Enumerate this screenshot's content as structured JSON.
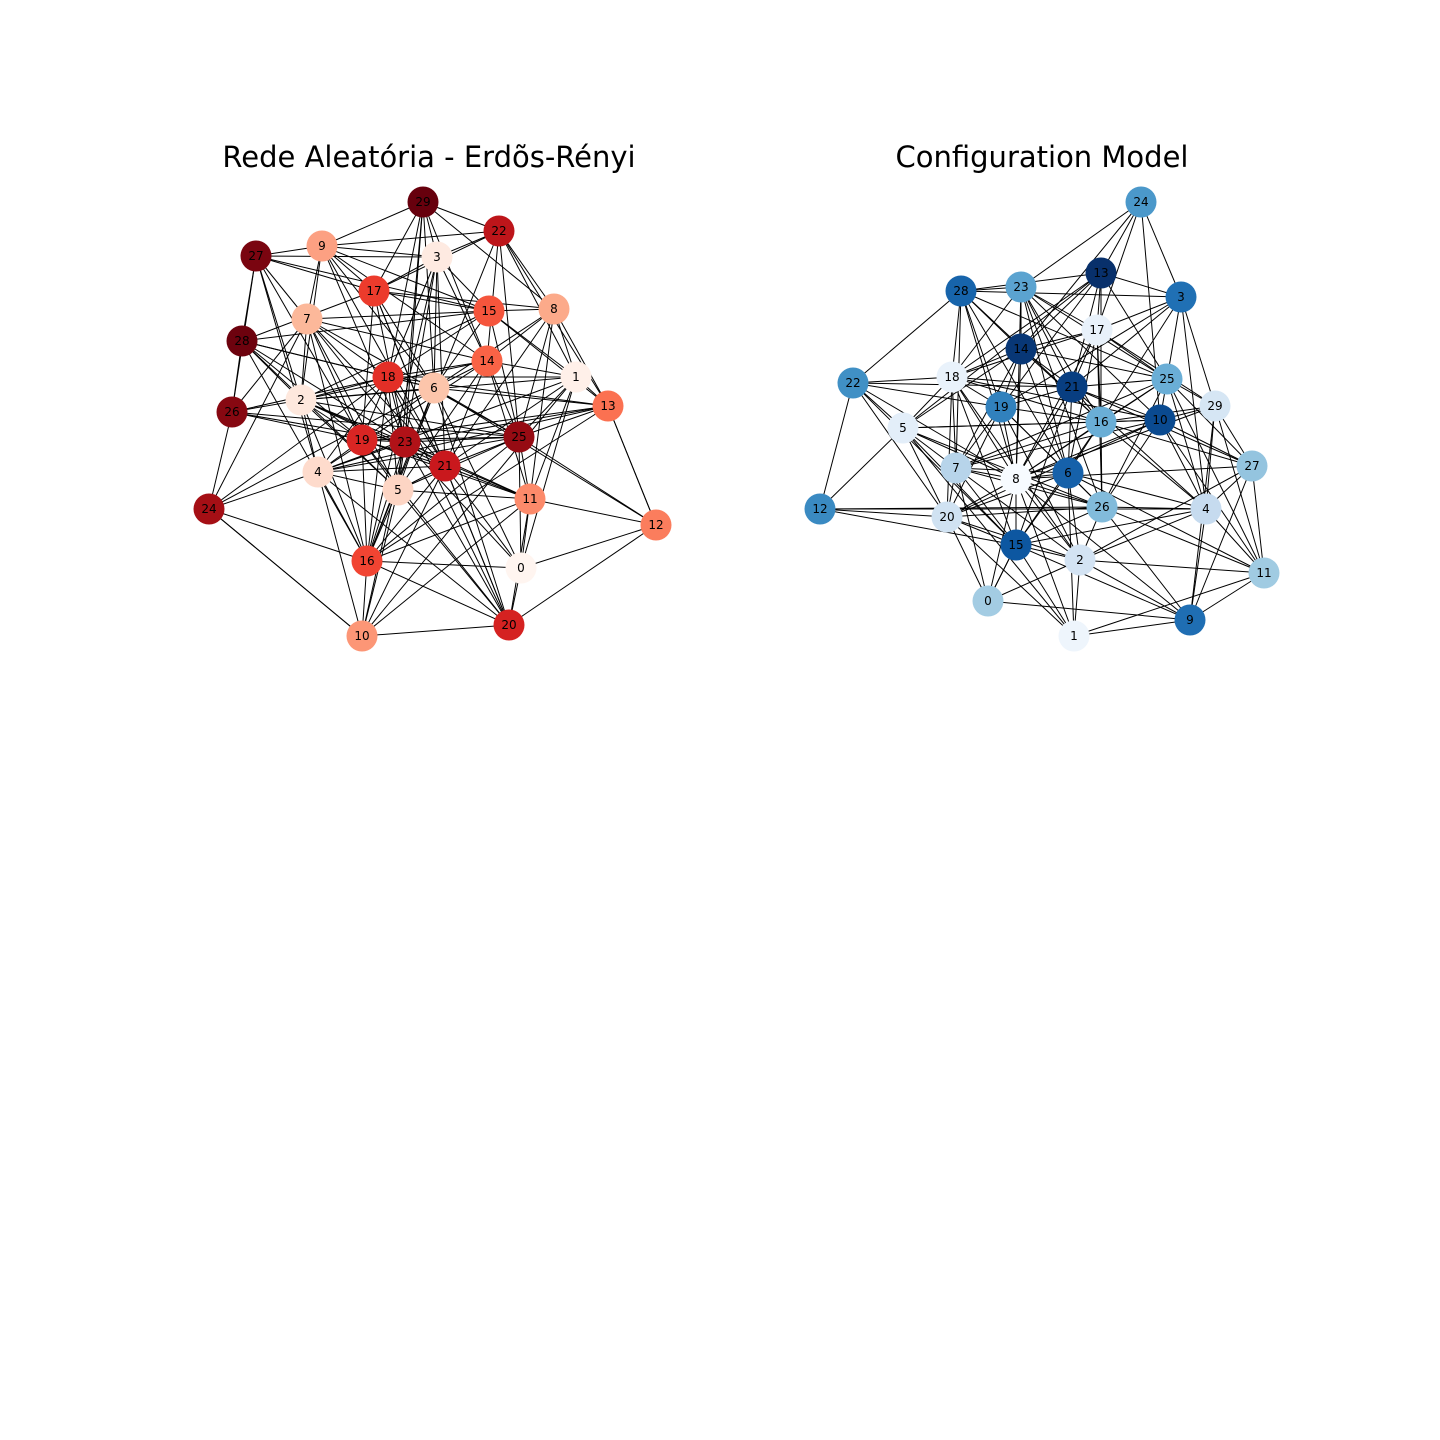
{
  "panels": [
    {
      "id": "er",
      "title": "Rede Aleatória - Erdõs-Rényi",
      "nodes": [
        {
          "id": "0",
          "color": "#fff5f0"
        },
        {
          "id": "1",
          "color": "#fff0e9"
        },
        {
          "id": "2",
          "color": "#fee8dd"
        },
        {
          "id": "3",
          "color": "#feeae1"
        },
        {
          "id": "4",
          "color": "#fedbcc"
        },
        {
          "id": "5",
          "color": "#fdd5c4"
        },
        {
          "id": "6",
          "color": "#fcc5ab"
        },
        {
          "id": "7",
          "color": "#fcb89a"
        },
        {
          "id": "8",
          "color": "#fcaa8a"
        },
        {
          "id": "9",
          "color": "#fca082"
        },
        {
          "id": "10",
          "color": "#fc9676"
        },
        {
          "id": "11",
          "color": "#fc8a6a"
        },
        {
          "id": "12",
          "color": "#fb7d5d"
        },
        {
          "id": "13",
          "color": "#fb7151"
        },
        {
          "id": "14",
          "color": "#f96346"
        },
        {
          "id": "15",
          "color": "#f5553c"
        },
        {
          "id": "16",
          "color": "#f14432"
        },
        {
          "id": "17",
          "color": "#ec3b2c"
        },
        {
          "id": "18",
          "color": "#e32f27"
        },
        {
          "id": "19",
          "color": "#d92523"
        },
        {
          "id": "20",
          "color": "#d52221"
        },
        {
          "id": "21",
          "color": "#c9181d"
        },
        {
          "id": "22",
          "color": "#bd151a"
        },
        {
          "id": "23",
          "color": "#b11218"
        },
        {
          "id": "24",
          "color": "#a50f15"
        },
        {
          "id": "25",
          "color": "#960b13"
        },
        {
          "id": "26",
          "color": "#870811"
        },
        {
          "id": "27",
          "color": "#7a0510"
        },
        {
          "id": "28",
          "color": "#6d020e"
        },
        {
          "id": "29",
          "color": "#67000d"
        }
      ]
    },
    {
      "id": "cm",
      "title": "Configuration Model",
      "nodes": [
        {
          "id": "0",
          "color": "#a3cce3"
        },
        {
          "id": "1",
          "color": "#eef5fc"
        },
        {
          "id": "2",
          "color": "#d3e3f3"
        },
        {
          "id": "3",
          "color": "#2070b4"
        },
        {
          "id": "4",
          "color": "#c6dbef"
        },
        {
          "id": "5",
          "color": "#e3eef9"
        },
        {
          "id": "6",
          "color": "#1661aa"
        },
        {
          "id": "7",
          "color": "#b7d4ea"
        },
        {
          "id": "8",
          "color": "#f7fbff"
        },
        {
          "id": "9",
          "color": "#1f6eb3"
        },
        {
          "id": "10",
          "color": "#0a4a90"
        },
        {
          "id": "11",
          "color": "#a0cbe2"
        },
        {
          "id": "12",
          "color": "#3a8ac2"
        },
        {
          "id": "13",
          "color": "#08306b"
        },
        {
          "id": "14",
          "color": "#083776"
        },
        {
          "id": "15",
          "color": "#0d57a1"
        },
        {
          "id": "16",
          "color": "#6aaed6"
        },
        {
          "id": "17",
          "color": "#e8f1fa"
        },
        {
          "id": "18",
          "color": "#e9f2fb"
        },
        {
          "id": "19",
          "color": "#3181bd"
        },
        {
          "id": "20",
          "color": "#d0e2f2"
        },
        {
          "id": "21",
          "color": "#083e81"
        },
        {
          "id": "22",
          "color": "#4090c5"
        },
        {
          "id": "23",
          "color": "#5ba3d0"
        },
        {
          "id": "24",
          "color": "#4b98ca"
        },
        {
          "id": "25",
          "color": "#6aaed6"
        },
        {
          "id": "26",
          "color": "#82bbdb"
        },
        {
          "id": "27",
          "color": "#94c4df"
        },
        {
          "id": "28",
          "color": "#1764ab"
        },
        {
          "id": "29",
          "color": "#d6e6f4"
        }
      ]
    }
  ]
}
